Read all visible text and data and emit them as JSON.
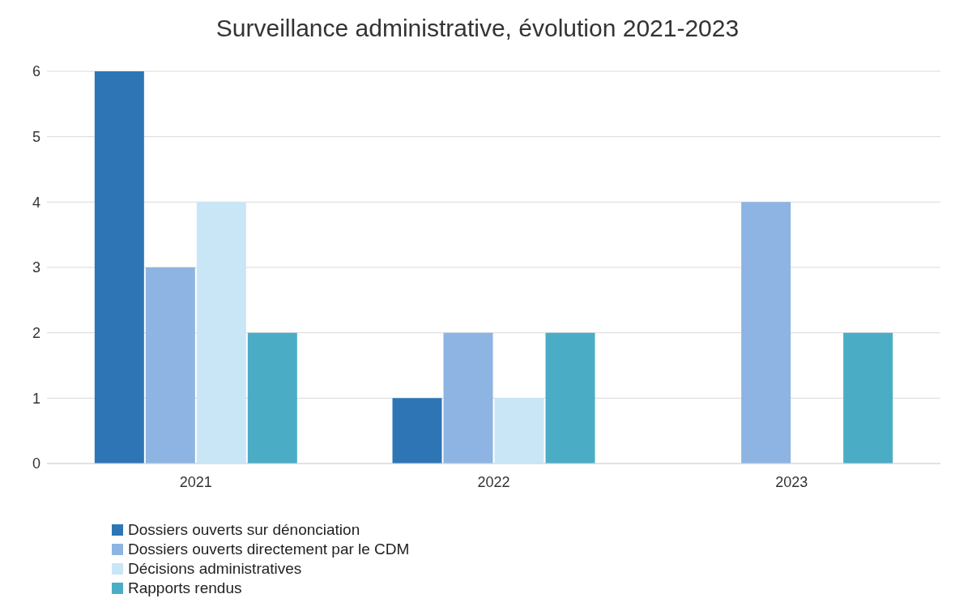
{
  "chart_data": {
    "type": "bar",
    "title": "Surveillance administrative, évolution 2021-2023",
    "categories": [
      "2021",
      "2022",
      "2023"
    ],
    "series": [
      {
        "name": "Dossiers ouverts sur dénonciation",
        "color": "#2e75b6",
        "values": [
          6,
          1,
          0
        ]
      },
      {
        "name": "Dossiers ouverts directement par le CDM",
        "color": "#8db4e2",
        "values": [
          3,
          2,
          4
        ]
      },
      {
        "name": "Décisions administratives",
        "color": "#c9e6f7",
        "values": [
          4,
          1,
          0
        ]
      },
      {
        "name": "Rapports rendus",
        "color": "#4bacc6",
        "values": [
          2,
          2,
          2
        ]
      }
    ],
    "ylim": [
      0,
      6
    ],
    "yticks": [
      0,
      1,
      2,
      3,
      4,
      5,
      6
    ],
    "grid": "y",
    "legend": "bottom left"
  }
}
